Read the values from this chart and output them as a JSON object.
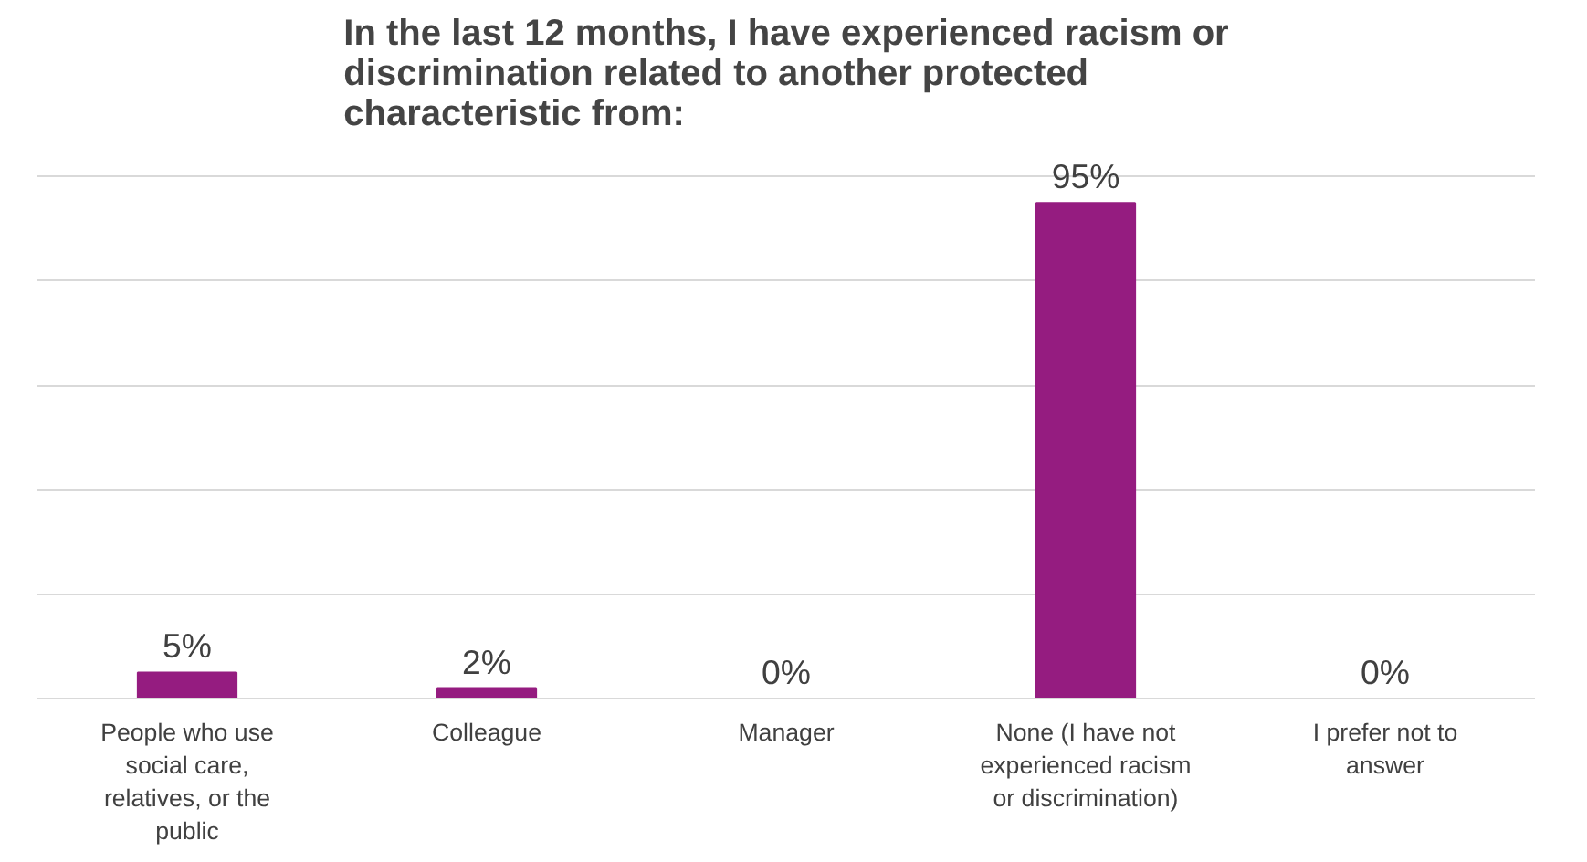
{
  "chart_data": {
    "type": "bar",
    "title": "In the last 12 months, I have experienced racism or discrimination related to another protected characteristic from:",
    "categories": [
      "People who use social care, relatives, or the public",
      "Colleague",
      "Manager",
      "None (I have not experienced racism or discrimination)",
      "I prefer not to answer"
    ],
    "values": [
      5,
      2,
      0,
      95,
      0
    ],
    "color": "#951c80",
    "value_labels": [
      "5%",
      "2%",
      "0%",
      "95%",
      "0%"
    ],
    "grid": "y",
    "tick_labels": "x"
  }
}
